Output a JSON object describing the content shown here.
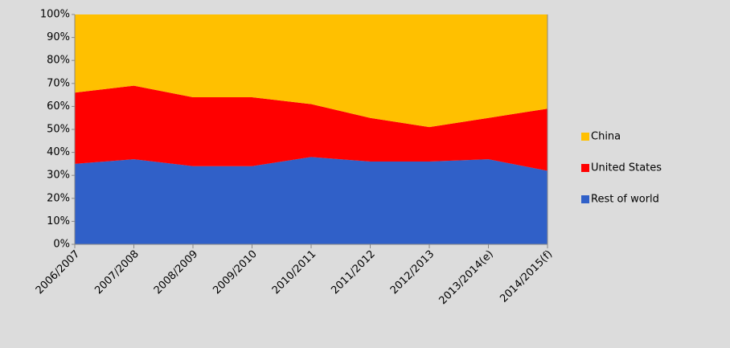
{
  "chart_data": {
    "type": "stacked_area_100",
    "categories": [
      "2006/2007",
      "2007/2008",
      "2008/2009",
      "2009/2010",
      "2010/2011",
      "2011/2012",
      "2012/2013",
      "2013/2014(e)",
      "2014/2015(f)"
    ],
    "series": [
      {
        "name": "Rest of world",
        "color": "#3060c8",
        "values": [
          35,
          37,
          34,
          34,
          38,
          36,
          36,
          37,
          32
        ]
      },
      {
        "name": "United States",
        "color": "#ff0000",
        "values": [
          31,
          32,
          30,
          30,
          23,
          19,
          15,
          18,
          27
        ]
      },
      {
        "name": "China",
        "color": "#ffc000",
        "values": [
          34,
          31,
          36,
          36,
          39,
          45,
          49,
          45,
          41
        ]
      }
    ],
    "ylim": [
      0,
      100
    ],
    "yticks": [
      {
        "value": 0,
        "label": "0%"
      },
      {
        "value": 10,
        "label": "10%"
      },
      {
        "value": 20,
        "label": "20%"
      },
      {
        "value": 30,
        "label": "30%"
      },
      {
        "value": 40,
        "label": "40%"
      },
      {
        "value": 50,
        "label": "50%"
      },
      {
        "value": 60,
        "label": "60%"
      },
      {
        "value": 70,
        "label": "70%"
      },
      {
        "value": 80,
        "label": "80%"
      },
      {
        "value": 90,
        "label": "90%"
      },
      {
        "value": 100,
        "label": "100%"
      }
    ],
    "legend": "right"
  }
}
